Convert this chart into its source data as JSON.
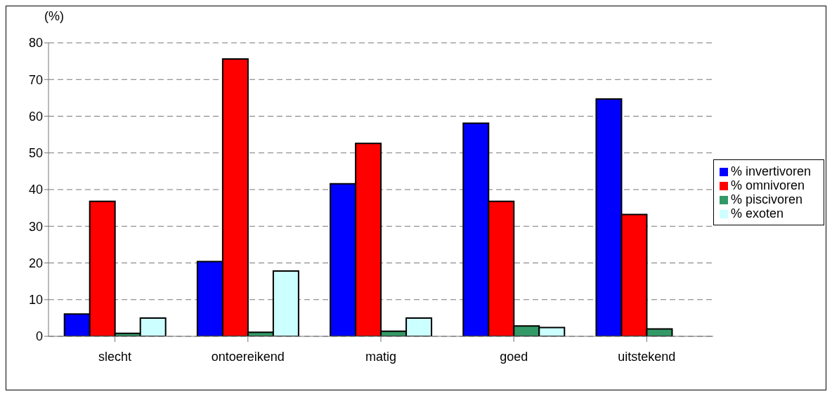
{
  "chart_data": {
    "type": "bar",
    "ylabel": "(%)",
    "categories": [
      "slecht",
      "ontoereikend",
      "matig",
      "goed",
      "uitstekend"
    ],
    "series": [
      {
        "name": "% invertivoren",
        "color": "#0000ff",
        "values": [
          6.1,
          20.4,
          41.6,
          58.1,
          64.7
        ]
      },
      {
        "name": "% omnivoren",
        "color": "#ff0000",
        "values": [
          36.8,
          75.6,
          52.6,
          36.8,
          33.2
        ]
      },
      {
        "name": "% piscivoren",
        "color": "#339966",
        "values": [
          0.8,
          1.1,
          1.4,
          2.8,
          2.0
        ]
      },
      {
        "name": "% exoten",
        "color": "#ccffff",
        "values": [
          5.0,
          17.8,
          5.0,
          2.4,
          0
        ]
      }
    ],
    "ylim": [
      0,
      80
    ],
    "yticks": [
      0,
      10,
      20,
      30,
      40,
      50,
      60,
      70,
      80
    ],
    "grid": "y",
    "legend": "right"
  }
}
